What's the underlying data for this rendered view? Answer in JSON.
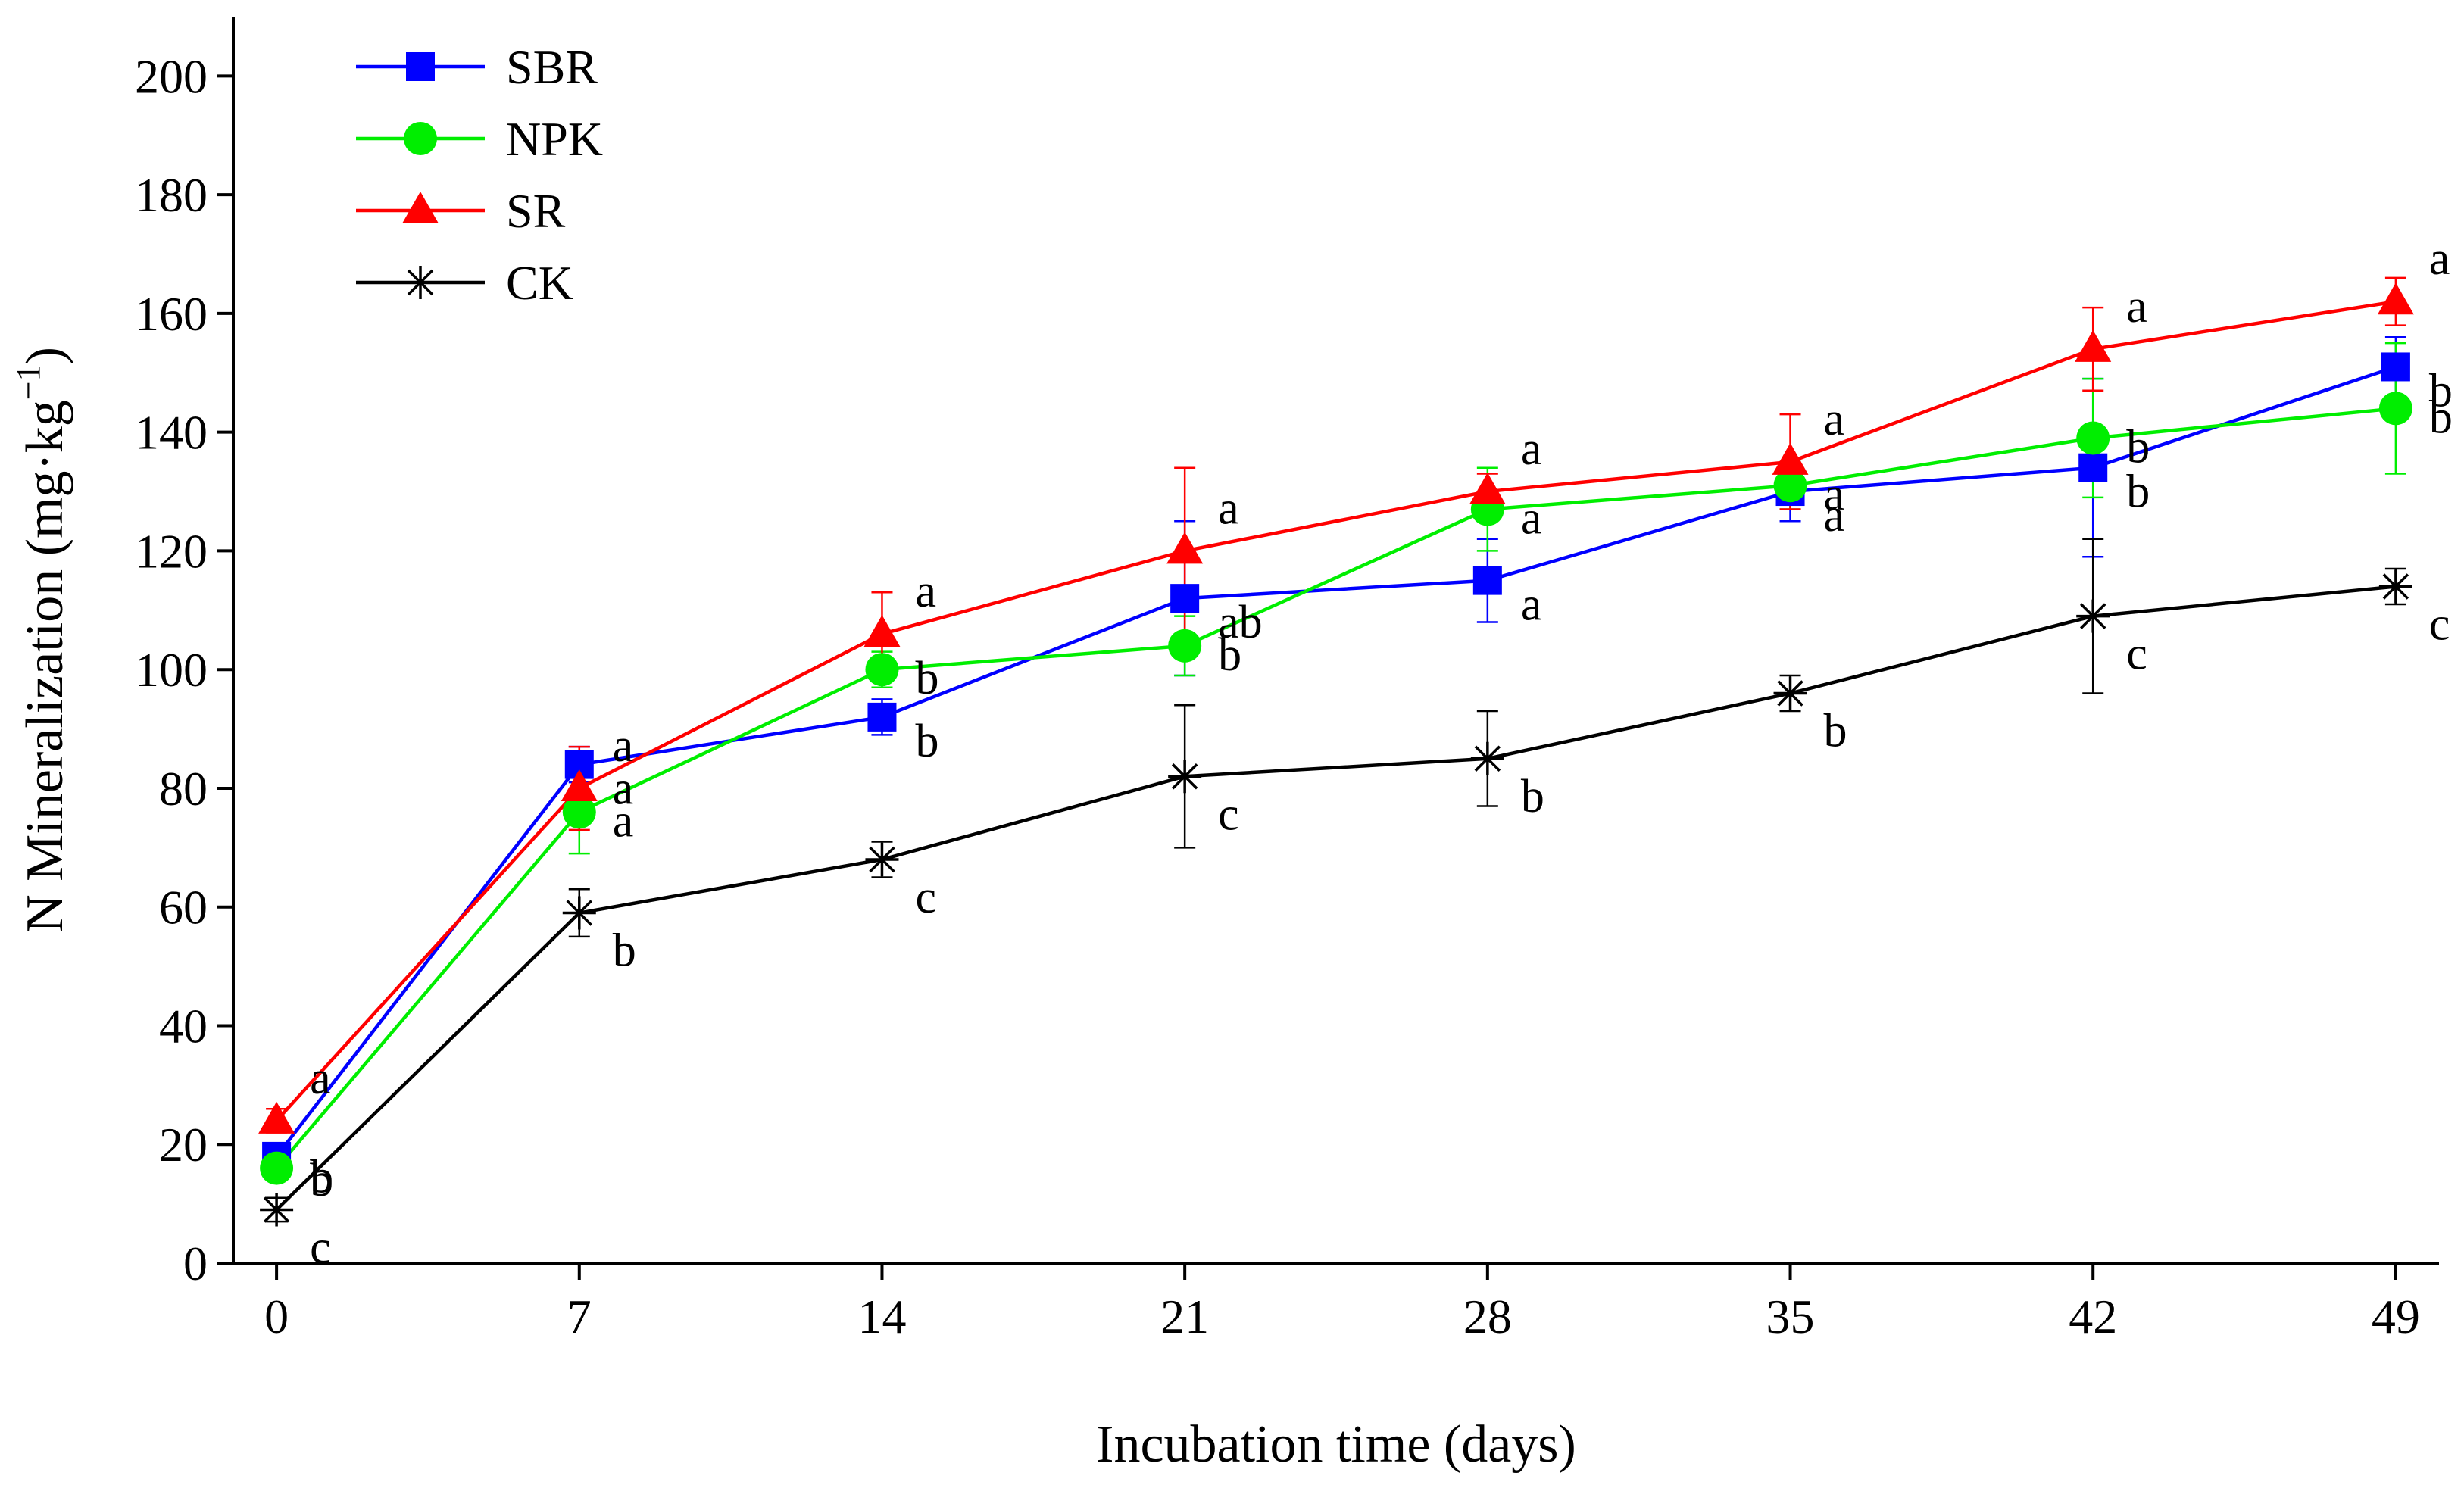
{
  "chart_data": {
    "type": "line",
    "title": "",
    "xlabel": "Incubation time (days)",
    "ylabel": "N Mineralization (mg·kg",
    "ylabel_sup": "−1",
    "ylabel_close": ")",
    "x": [
      0,
      7,
      14,
      21,
      28,
      35,
      42,
      49
    ],
    "xlim": [
      -1,
      50
    ],
    "ylim": [
      0,
      210
    ],
    "xticks": [
      0,
      7,
      14,
      21,
      28,
      35,
      42,
      49
    ],
    "yticks": [
      0,
      20,
      40,
      60,
      80,
      100,
      120,
      140,
      160,
      180,
      200
    ],
    "grid": false,
    "legend_position": "top-left",
    "series": [
      {
        "name": "SBR",
        "color": "#0000ff",
        "marker": "square",
        "values": [
          18,
          84,
          92,
          112,
          115,
          130,
          134,
          151
        ],
        "errors": [
          2,
          3,
          3,
          13,
          7,
          5,
          15,
          5
        ],
        "labels": [
          "b",
          "a",
          "b",
          "ab",
          "a",
          "a",
          "b",
          "b"
        ]
      },
      {
        "name": "NPK",
        "color": "#00ee00",
        "marker": "circle",
        "values": [
          16,
          76,
          100,
          104,
          127,
          131,
          139,
          144
        ],
        "errors": [
          2,
          7,
          3,
          5,
          7,
          4,
          10,
          11
        ],
        "labels": [
          "b",
          "a",
          "b",
          "b",
          "a",
          "a",
          "b",
          "b"
        ]
      },
      {
        "name": "SR",
        "color": "#ff0000",
        "marker": "triangle",
        "values": [
          24,
          80,
          106,
          120,
          130,
          135,
          154,
          162
        ],
        "errors": [
          2,
          7,
          7,
          14,
          3,
          8,
          7,
          4
        ],
        "labels": [
          "a",
          "a",
          "a",
          "a",
          "a",
          "a",
          "a",
          "a"
        ]
      },
      {
        "name": "CK",
        "color": "#000000",
        "marker": "star",
        "values": [
          9,
          59,
          68,
          82,
          85,
          96,
          109,
          114
        ],
        "errors": [
          2,
          4,
          3,
          12,
          8,
          3,
          13,
          3
        ],
        "labels": [
          "c",
          "b",
          "c",
          "c",
          "b",
          "b",
          "c",
          "c"
        ]
      }
    ]
  }
}
